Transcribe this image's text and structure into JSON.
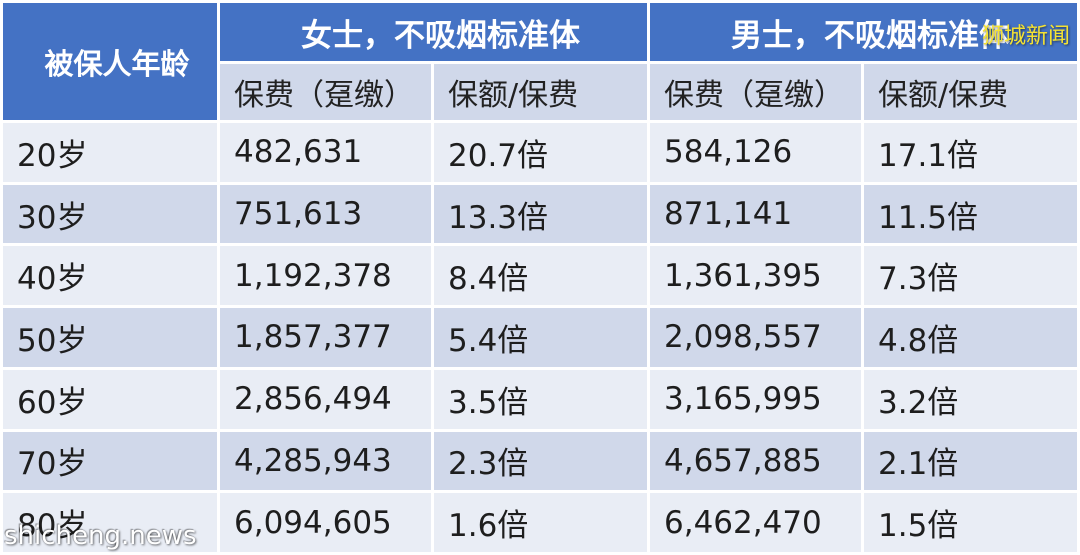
{
  "header": {
    "age_label": "被保人年龄",
    "female_group": "女士，不吸烟标准体",
    "male_group": "男士，不吸烟标准体",
    "premium_label": "保费（趸缴）",
    "ratio_label": "保额/保费"
  },
  "rows": [
    {
      "age": "20岁",
      "f_premium": "482,631",
      "f_ratio": "20.7倍",
      "m_premium": "584,126",
      "m_ratio": "17.1倍"
    },
    {
      "age": "30岁",
      "f_premium": "751,613",
      "f_ratio": "13.3倍",
      "m_premium": "871,141",
      "m_ratio": "11.5倍"
    },
    {
      "age": "40岁",
      "f_premium": "1,192,378",
      "f_ratio": "8.4倍",
      "m_premium": "1,361,395",
      "m_ratio": "7.3倍"
    },
    {
      "age": "50岁",
      "f_premium": "1,857,377",
      "f_ratio": "5.4倍",
      "m_premium": "2,098,557",
      "m_ratio": "4.8倍"
    },
    {
      "age": "60岁",
      "f_premium": "2,856,494",
      "f_ratio": "3.5倍",
      "m_premium": "3,165,995",
      "m_ratio": "3.2倍"
    },
    {
      "age": "70岁",
      "f_premium": "4,285,943",
      "f_ratio": "2.3倍",
      "m_premium": "4,657,885",
      "m_ratio": "2.1倍"
    },
    {
      "age": "80岁",
      "f_premium": "6,094,605",
      "f_ratio": "1.6倍",
      "m_premium": "6,462,470",
      "m_ratio": "1.5倍"
    }
  ],
  "watermarks": {
    "top_right": "狮城新闻",
    "bottom_left": "shicheng.news"
  },
  "colors": {
    "header_blue": "#4472c4",
    "row_light": "#e9edf5",
    "row_dark": "#d0d8ea",
    "watermark_yellow": "#f4e233"
  }
}
